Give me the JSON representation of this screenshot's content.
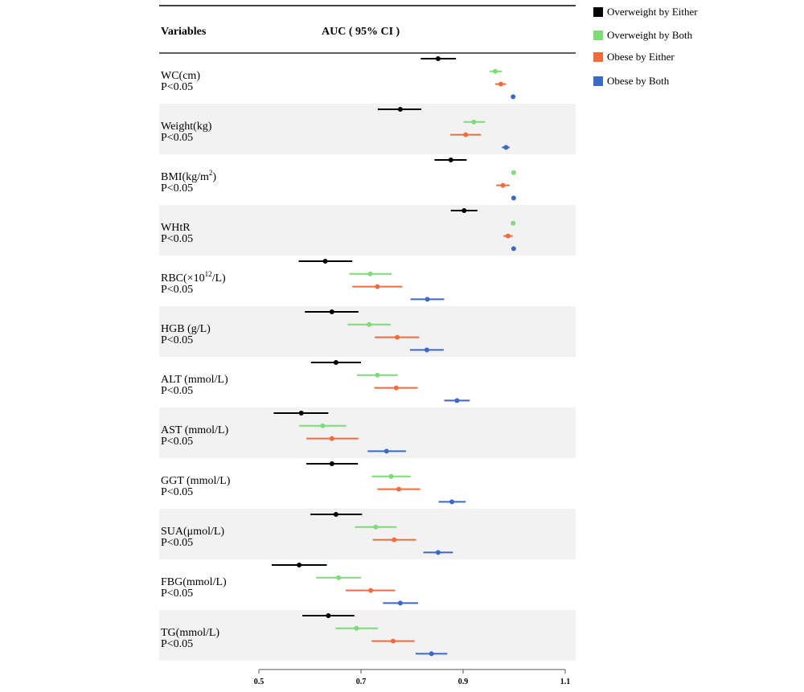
{
  "chart_data": {
    "type": "forest",
    "header": {
      "variables": "Variables",
      "auc": "AUC ( 95% CI )"
    },
    "x_ticks": [
      "0.5",
      "0.7",
      "0.9",
      "1.1"
    ],
    "xlim": [
      0.5,
      1.1
    ],
    "row_label_suffix": "P<0.05",
    "legend": [
      {
        "name": "Overweight by Either",
        "color": "#000000"
      },
      {
        "name": "Overweight by Both",
        "color": "#7ddc78"
      },
      {
        "name": "Obese by Either",
        "color": "#f26b3a"
      },
      {
        "name": "Obese by Both",
        "color": "#3c68c8"
      }
    ],
    "rows": [
      {
        "label": "WC(cm)",
        "shaded": false,
        "estimates": [
          {
            "est": 0.851,
            "lo": 0.817,
            "hi": 0.886
          },
          {
            "est": 0.963,
            "lo": 0.952,
            "hi": 0.976
          },
          {
            "est": 0.974,
            "lo": 0.963,
            "hi": 0.984
          },
          {
            "est": 0.998,
            "lo": 0.996,
            "hi": 1.0
          }
        ]
      },
      {
        "label": "Weight(kg)",
        "shaded": true,
        "estimates": [
          {
            "est": 0.777,
            "lo": 0.733,
            "hi": 0.818
          },
          {
            "est": 0.921,
            "lo": 0.901,
            "hi": 0.943
          },
          {
            "est": 0.905,
            "lo": 0.875,
            "hi": 0.935
          },
          {
            "est": 0.984,
            "lo": 0.976,
            "hi": 0.991
          }
        ]
      },
      {
        "label": "BMI(kg/m",
        "sup": "2",
        "label_after": ")",
        "shaded": false,
        "estimates": [
          {
            "est": 0.876,
            "lo": 0.844,
            "hi": 0.907
          },
          {
            "est": 0.999,
            "lo": 0.998,
            "hi": 1.0
          },
          {
            "est": 0.978,
            "lo": 0.965,
            "hi": 0.991
          },
          {
            "est": 0.999,
            "lo": 0.998,
            "hi": 1.0
          }
        ]
      },
      {
        "label": "WHtR",
        "shaded": true,
        "estimates": [
          {
            "est": 0.902,
            "lo": 0.876,
            "hi": 0.928
          },
          {
            "est": 0.998,
            "lo": 0.996,
            "hi": 1.0
          },
          {
            "est": 0.988,
            "lo": 0.979,
            "hi": 0.997
          },
          {
            "est": 0.999,
            "lo": 0.998,
            "hi": 1.0
          }
        ]
      },
      {
        "label": "RBC(×10",
        "sup": "12",
        "label_after": "/L)",
        "shaded": false,
        "estimates": [
          {
            "est": 0.63,
            "lo": 0.578,
            "hi": 0.683
          },
          {
            "est": 0.718,
            "lo": 0.677,
            "hi": 0.76
          },
          {
            "est": 0.732,
            "lo": 0.683,
            "hi": 0.781
          },
          {
            "est": 0.83,
            "lo": 0.797,
            "hi": 0.863
          }
        ]
      },
      {
        "label": "HGB (g/L)",
        "shaded": true,
        "estimates": [
          {
            "est": 0.643,
            "lo": 0.59,
            "hi": 0.695
          },
          {
            "est": 0.716,
            "lo": 0.674,
            "hi": 0.758
          },
          {
            "est": 0.771,
            "lo": 0.727,
            "hi": 0.814
          },
          {
            "est": 0.829,
            "lo": 0.796,
            "hi": 0.862
          }
        ]
      },
      {
        "label": "ALT (mmol/L)",
        "shaded": false,
        "estimates": [
          {
            "est": 0.651,
            "lo": 0.602,
            "hi": 0.7
          },
          {
            "est": 0.732,
            "lo": 0.692,
            "hi": 0.772
          },
          {
            "est": 0.769,
            "lo": 0.726,
            "hi": 0.811
          },
          {
            "est": 0.888,
            "lo": 0.863,
            "hi": 0.913
          }
        ]
      },
      {
        "label": "AST (mmol/L)",
        "shaded": true,
        "estimates": [
          {
            "est": 0.583,
            "lo": 0.529,
            "hi": 0.636
          },
          {
            "est": 0.625,
            "lo": 0.579,
            "hi": 0.671
          },
          {
            "est": 0.643,
            "lo": 0.593,
            "hi": 0.695
          },
          {
            "est": 0.75,
            "lo": 0.713,
            "hi": 0.788
          }
        ]
      },
      {
        "label": "GGT (mmol/L)",
        "shaded": false,
        "estimates": [
          {
            "est": 0.643,
            "lo": 0.593,
            "hi": 0.694
          },
          {
            "est": 0.759,
            "lo": 0.721,
            "hi": 0.797
          },
          {
            "est": 0.774,
            "lo": 0.732,
            "hi": 0.816
          },
          {
            "est": 0.878,
            "lo": 0.852,
            "hi": 0.905
          }
        ]
      },
      {
        "label": "SUA(μmol/L)",
        "shaded": true,
        "estimates": [
          {
            "est": 0.651,
            "lo": 0.601,
            "hi": 0.702
          },
          {
            "est": 0.729,
            "lo": 0.688,
            "hi": 0.77
          },
          {
            "est": 0.765,
            "lo": 0.723,
            "hi": 0.808
          },
          {
            "est": 0.851,
            "lo": 0.822,
            "hi": 0.88
          }
        ]
      },
      {
        "label": "FBG(mmol/L)",
        "shaded": false,
        "estimates": [
          {
            "est": 0.579,
            "lo": 0.525,
            "hi": 0.633
          },
          {
            "est": 0.656,
            "lo": 0.612,
            "hi": 0.7
          },
          {
            "est": 0.719,
            "lo": 0.67,
            "hi": 0.767
          },
          {
            "est": 0.777,
            "lo": 0.743,
            "hi": 0.812
          }
        ]
      },
      {
        "label": "TG(mmol/L)",
        "shaded": true,
        "estimates": [
          {
            "est": 0.636,
            "lo": 0.585,
            "hi": 0.687
          },
          {
            "est": 0.691,
            "lo": 0.65,
            "hi": 0.733
          },
          {
            "est": 0.763,
            "lo": 0.721,
            "hi": 0.805
          },
          {
            "est": 0.838,
            "lo": 0.807,
            "hi": 0.869
          }
        ]
      }
    ]
  }
}
